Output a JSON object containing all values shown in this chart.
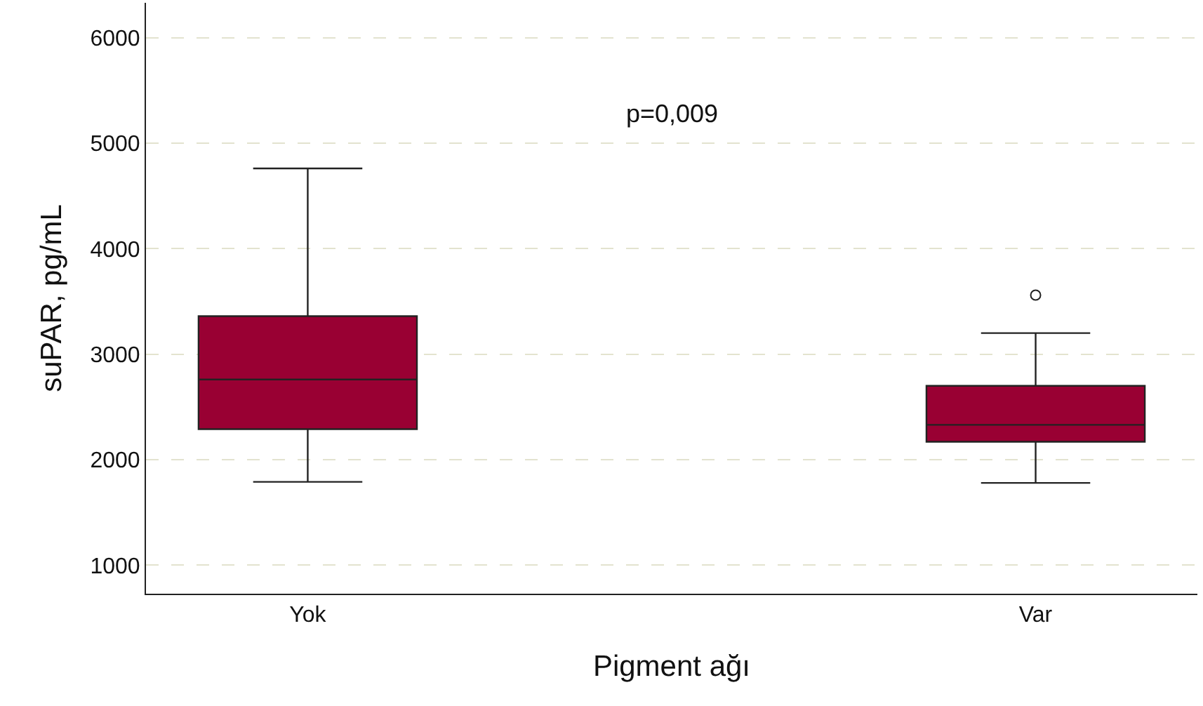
{
  "chart_data": {
    "type": "box",
    "xlabel": "Pigment ağı",
    "ylabel": "suPAR, pg/mL",
    "categories": [
      "Yok",
      "Var"
    ],
    "boxes": [
      {
        "low": 1790,
        "q1": 2290,
        "median": 2760,
        "q3": 3360,
        "high": 4760
      },
      {
        "low": 1780,
        "q1": 2170,
        "median": 2330,
        "q3": 2700,
        "high": 3200,
        "outliers": [
          3560
        ]
      }
    ],
    "color": "#990033",
    "ylim": [
      730,
      6330
    ],
    "yticks": [
      1000,
      2000,
      3000,
      4000,
      5000,
      6000
    ],
    "grid": "y",
    "annotations": [
      "p=0,009"
    ]
  }
}
